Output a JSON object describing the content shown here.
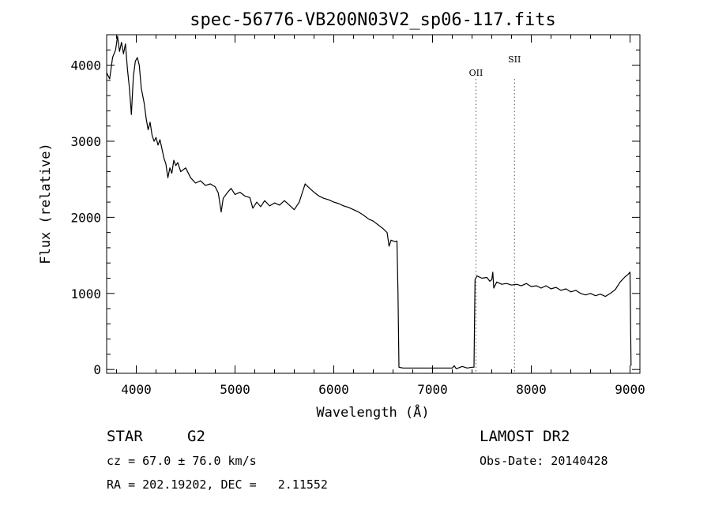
{
  "chart_data": {
    "type": "line",
    "title": "spec-56776-VB200N03V2_sp06-117.fits",
    "xlabel": "Wavelength (Å)",
    "ylabel": "Flux (relative)",
    "xlim": [
      3700,
      9100
    ],
    "ylim": [
      -50,
      4400
    ],
    "x_ticks": [
      4000,
      5000,
      6000,
      7000,
      8000,
      9000
    ],
    "y_ticks": [
      0,
      1000,
      2000,
      3000,
      4000
    ],
    "grid": false,
    "series": [
      {
        "color": "#000000",
        "points": [
          [
            3700,
            3900
          ],
          [
            3730,
            3820
          ],
          [
            3760,
            4100
          ],
          [
            3790,
            4200
          ],
          [
            3810,
            4380
          ],
          [
            3830,
            4180
          ],
          [
            3850,
            4300
          ],
          [
            3870,
            4150
          ],
          [
            3890,
            4280
          ],
          [
            3910,
            3950
          ],
          [
            3930,
            3700
          ],
          [
            3950,
            3350
          ],
          [
            3970,
            3850
          ],
          [
            3990,
            4050
          ],
          [
            4010,
            4100
          ],
          [
            4030,
            4000
          ],
          [
            4050,
            3700
          ],
          [
            4080,
            3500
          ],
          [
            4100,
            3300
          ],
          [
            4120,
            3150
          ],
          [
            4140,
            3250
          ],
          [
            4160,
            3080
          ],
          [
            4180,
            3000
          ],
          [
            4200,
            3050
          ],
          [
            4220,
            2950
          ],
          [
            4240,
            3020
          ],
          [
            4260,
            2900
          ],
          [
            4280,
            2780
          ],
          [
            4300,
            2700
          ],
          [
            4320,
            2520
          ],
          [
            4340,
            2650
          ],
          [
            4360,
            2580
          ],
          [
            4380,
            2750
          ],
          [
            4400,
            2680
          ],
          [
            4420,
            2720
          ],
          [
            4450,
            2600
          ],
          [
            4500,
            2650
          ],
          [
            4550,
            2520
          ],
          [
            4600,
            2450
          ],
          [
            4650,
            2480
          ],
          [
            4700,
            2420
          ],
          [
            4750,
            2440
          ],
          [
            4800,
            2400
          ],
          [
            4830,
            2320
          ],
          [
            4860,
            2070
          ],
          [
            4880,
            2250
          ],
          [
            4920,
            2320
          ],
          [
            4960,
            2380
          ],
          [
            5000,
            2300
          ],
          [
            5050,
            2330
          ],
          [
            5100,
            2280
          ],
          [
            5150,
            2260
          ],
          [
            5180,
            2120
          ],
          [
            5220,
            2200
          ],
          [
            5260,
            2140
          ],
          [
            5300,
            2220
          ],
          [
            5350,
            2150
          ],
          [
            5400,
            2190
          ],
          [
            5450,
            2160
          ],
          [
            5500,
            2220
          ],
          [
            5550,
            2160
          ],
          [
            5600,
            2100
          ],
          [
            5650,
            2200
          ],
          [
            5680,
            2320
          ],
          [
            5710,
            2440
          ],
          [
            5740,
            2400
          ],
          [
            5800,
            2330
          ],
          [
            5850,
            2280
          ],
          [
            5900,
            2250
          ],
          [
            5950,
            2230
          ],
          [
            6000,
            2200
          ],
          [
            6050,
            2180
          ],
          [
            6100,
            2150
          ],
          [
            6150,
            2130
          ],
          [
            6200,
            2100
          ],
          [
            6250,
            2070
          ],
          [
            6300,
            2030
          ],
          [
            6350,
            1980
          ],
          [
            6400,
            1950
          ],
          [
            6450,
            1900
          ],
          [
            6500,
            1850
          ],
          [
            6540,
            1800
          ],
          [
            6560,
            1620
          ],
          [
            6580,
            1700
          ],
          [
            6620,
            1680
          ],
          [
            6640,
            1690
          ],
          [
            6650,
            1000
          ],
          [
            6660,
            30
          ],
          [
            6700,
            20
          ],
          [
            6800,
            20
          ],
          [
            6900,
            20
          ],
          [
            7000,
            20
          ],
          [
            7100,
            20
          ],
          [
            7200,
            20
          ],
          [
            7220,
            50
          ],
          [
            7240,
            10
          ],
          [
            7260,
            20
          ],
          [
            7300,
            40
          ],
          [
            7350,
            20
          ],
          [
            7400,
            30
          ],
          [
            7420,
            30
          ],
          [
            7430,
            1180
          ],
          [
            7450,
            1230
          ],
          [
            7500,
            1200
          ],
          [
            7550,
            1210
          ],
          [
            7580,
            1160
          ],
          [
            7600,
            1180
          ],
          [
            7610,
            1280
          ],
          [
            7620,
            1070
          ],
          [
            7650,
            1150
          ],
          [
            7700,
            1120
          ],
          [
            7750,
            1130
          ],
          [
            7800,
            1110
          ],
          [
            7850,
            1120
          ],
          [
            7900,
            1100
          ],
          [
            7950,
            1130
          ],
          [
            8000,
            1090
          ],
          [
            8050,
            1100
          ],
          [
            8100,
            1070
          ],
          [
            8150,
            1100
          ],
          [
            8200,
            1060
          ],
          [
            8250,
            1080
          ],
          [
            8300,
            1040
          ],
          [
            8350,
            1060
          ],
          [
            8400,
            1020
          ],
          [
            8450,
            1040
          ],
          [
            8500,
            1000
          ],
          [
            8550,
            980
          ],
          [
            8600,
            1000
          ],
          [
            8650,
            970
          ],
          [
            8700,
            990
          ],
          [
            8750,
            960
          ],
          [
            8800,
            1000
          ],
          [
            8850,
            1050
          ],
          [
            8900,
            1150
          ],
          [
            8950,
            1220
          ],
          [
            8980,
            1250
          ],
          [
            9000,
            1280
          ],
          [
            9010,
            50
          ]
        ]
      }
    ],
    "lines": [
      {
        "wavelength": 7440,
        "label": "OII"
      },
      {
        "wavelength": 7830,
        "label": "SII"
      }
    ],
    "info": {
      "class": "STAR",
      "subclass": "G2",
      "survey": "LAMOST DR2",
      "cz": "cz = 67.0 ± 76.0 km/s",
      "obs_date": "Obs-Date: 20140428",
      "radec": "RA = 202.19202, DEC =   2.11552"
    }
  }
}
